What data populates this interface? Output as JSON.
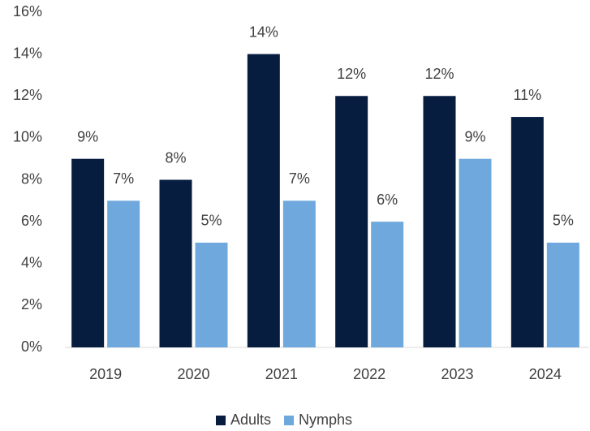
{
  "chart_data": {
    "type": "bar",
    "categories": [
      "2019",
      "2020",
      "2021",
      "2022",
      "2023",
      "2024"
    ],
    "series": [
      {
        "name": "Adults",
        "color": "#061d40",
        "values": [
          9,
          8,
          14,
          12,
          12,
          11
        ],
        "value_labels": [
          "9%",
          "8%",
          "14%",
          "12%",
          "12%",
          "11%"
        ]
      },
      {
        "name": "Nymphs",
        "color": "#6fa8dc",
        "values": [
          7,
          5,
          7,
          6,
          9,
          5
        ],
        "value_labels": [
          "7%",
          "5%",
          "7%",
          "6%",
          "9%",
          "5%"
        ]
      }
    ],
    "ylim": [
      0,
      16
    ],
    "yticks": [
      {
        "value": 0,
        "label": "0%"
      },
      {
        "value": 2,
        "label": "2%"
      },
      {
        "value": 4,
        "label": "4%"
      },
      {
        "value": 6,
        "label": "6%"
      },
      {
        "value": 8,
        "label": "8%"
      },
      {
        "value": 10,
        "label": "10%"
      },
      {
        "value": 12,
        "label": "12%"
      },
      {
        "value": 14,
        "label": "14%"
      },
      {
        "value": 16,
        "label": "16%"
      }
    ],
    "grid": false,
    "legend": "bottom"
  }
}
